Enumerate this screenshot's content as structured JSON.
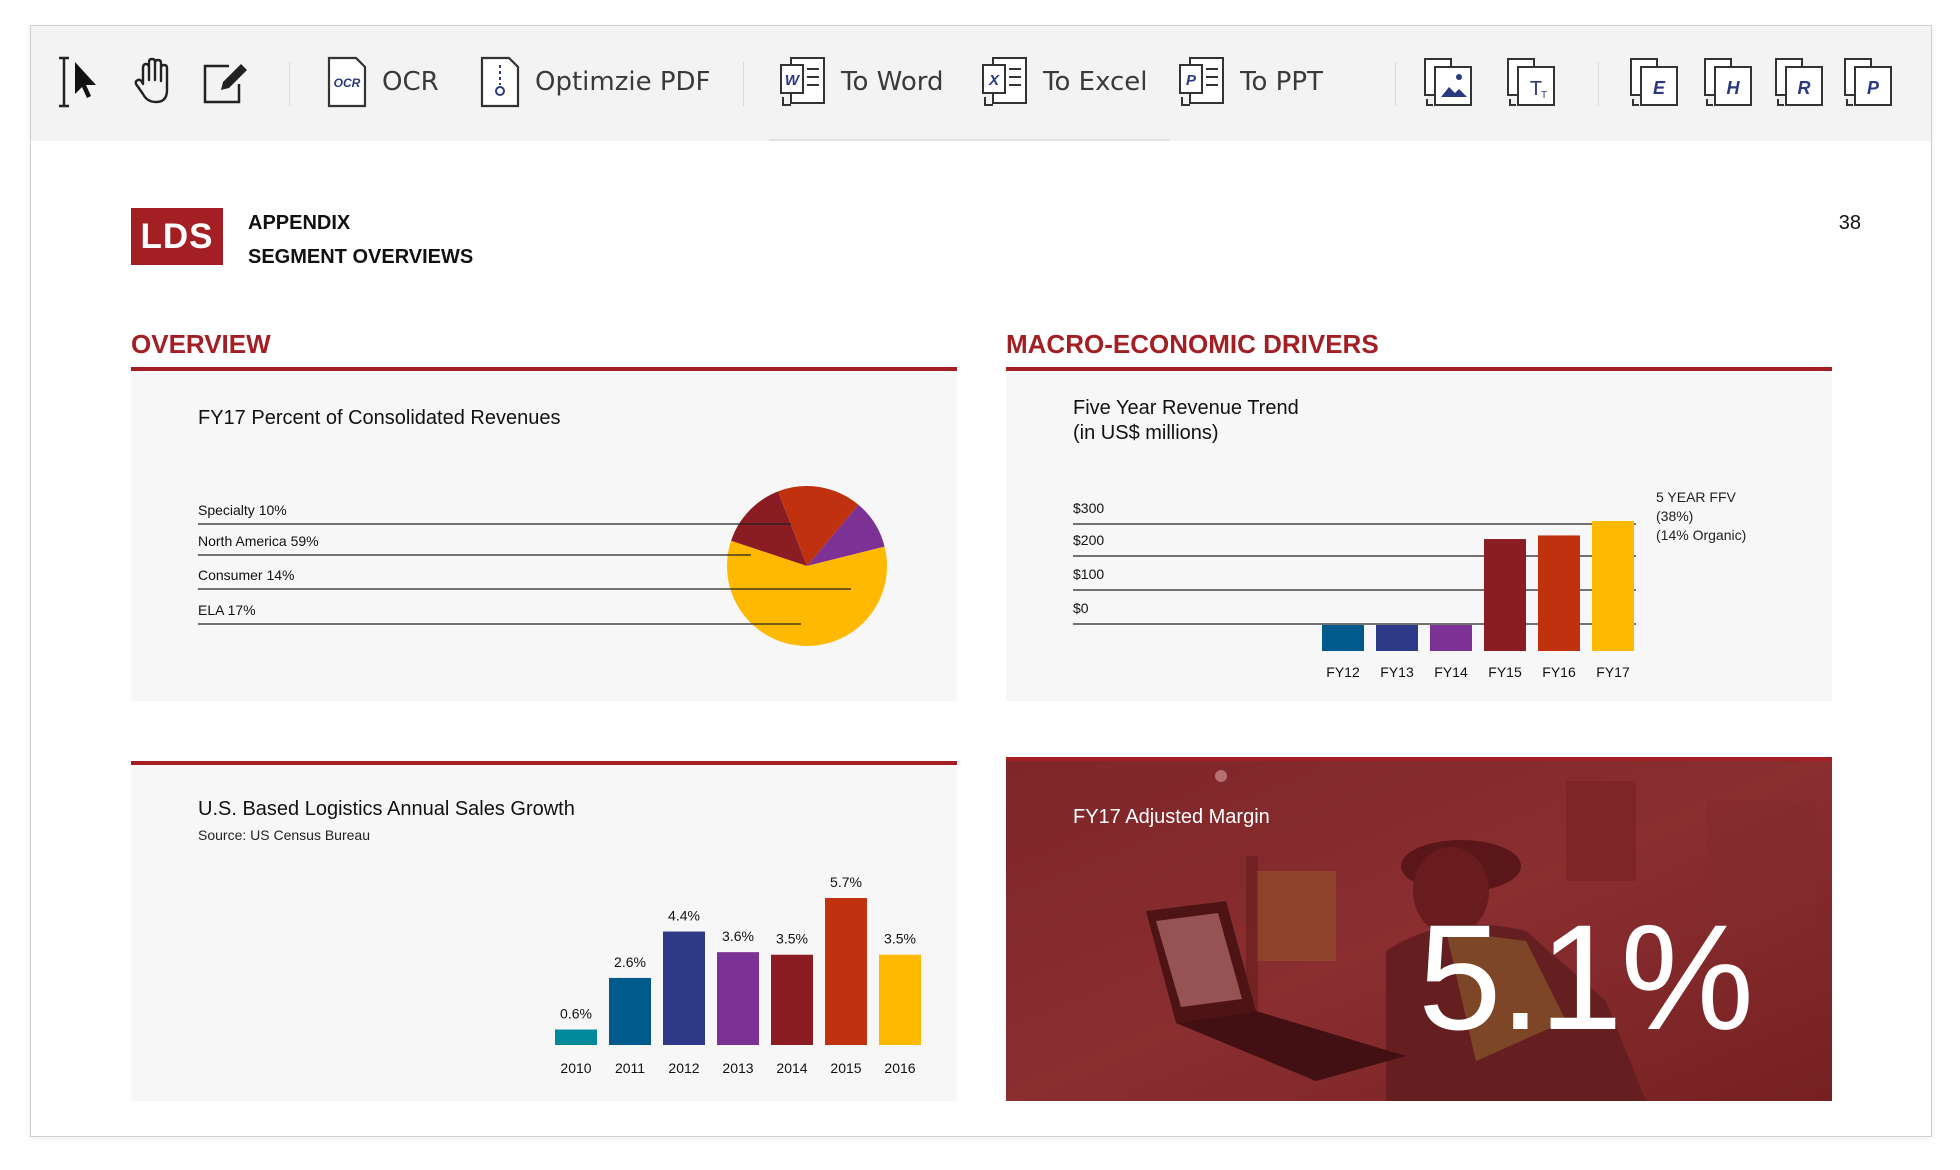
{
  "toolbar": {
    "ocr_label": "OCR",
    "optimize_label": "Optimzie PDF",
    "to_word_label": "To Word",
    "to_excel_label": "To Excel",
    "to_ppt_label": "To PPT",
    "icons": [
      "select-cursor-icon",
      "hand-icon",
      "edit-icon",
      "ocr-icon",
      "optimize-pdf-icon",
      "word-icon",
      "excel-icon",
      "ppt-icon",
      "image-convert-icon",
      "text-convert-icon",
      "epub-icon",
      "html-icon",
      "rtf-icon",
      "pages-icon"
    ]
  },
  "page": {
    "logo": "LDS",
    "heading_line1": "APPENDIX",
    "heading_line2": "SEGMENT OVERVIEWS",
    "page_number": "38"
  },
  "overview": {
    "section_title": "OVERVIEW",
    "pie_title": "FY17 Percent of Consolidated Revenues",
    "growth_title": "U.S. Based Logistics Annual Sales Growth",
    "growth_source": "Source: US Census Bureau"
  },
  "macro": {
    "section_title": "MACRO-ECONOMIC DRIVERS",
    "trend_title_line1": "Five Year Revenue Trend",
    "trend_title_line2": "(in US$ millions)",
    "note_line1": "5 YEAR FFV",
    "note_line2": "(38%)",
    "note_line3": "(14% Organic)",
    "margin_title": "FY17 Adjusted Margin",
    "margin_value": "5.1%"
  },
  "chart_data": [
    {
      "type": "pie",
      "title": "FY17 Percent of Consolidated Revenues",
      "labels": [
        "Specialty 10%",
        "North America 59%",
        "Consumer 14%",
        "ELA 17%"
      ],
      "values": [
        10,
        59,
        14,
        17
      ],
      "colors": [
        "#7b3294",
        "#ffb900",
        "#8b1c24",
        "#c0310f"
      ]
    },
    {
      "type": "bar",
      "title": "Five Year Revenue Trend (in US$ millions)",
      "categories": [
        "FY12",
        "FY13",
        "FY14",
        "FY15",
        "FY16",
        "FY17"
      ],
      "values": [
        55,
        55,
        60,
        310,
        320,
        360
      ],
      "y_ticks": [
        "$300",
        "$200",
        "$100",
        "$0"
      ],
      "colors": [
        "#005a8c",
        "#2e3a87",
        "#7b3294",
        "#8b1c24",
        "#c0310f",
        "#ffb900"
      ]
    },
    {
      "type": "bar",
      "title": "U.S. Based Logistics Annual Sales Growth",
      "categories": [
        "2010",
        "2011",
        "2012",
        "2013",
        "2014",
        "2015",
        "2016"
      ],
      "values": [
        0.6,
        2.6,
        4.4,
        3.6,
        3.5,
        5.7,
        3.5
      ],
      "data_labels": [
        "0.6%",
        "2.6%",
        "4.4%",
        "3.6%",
        "3.5%",
        "5.7%",
        "3.5%"
      ],
      "colors": [
        "#00899a",
        "#005a8c",
        "#2e3a87",
        "#7b3294",
        "#8b1c24",
        "#c0310f",
        "#ffb900"
      ]
    }
  ]
}
